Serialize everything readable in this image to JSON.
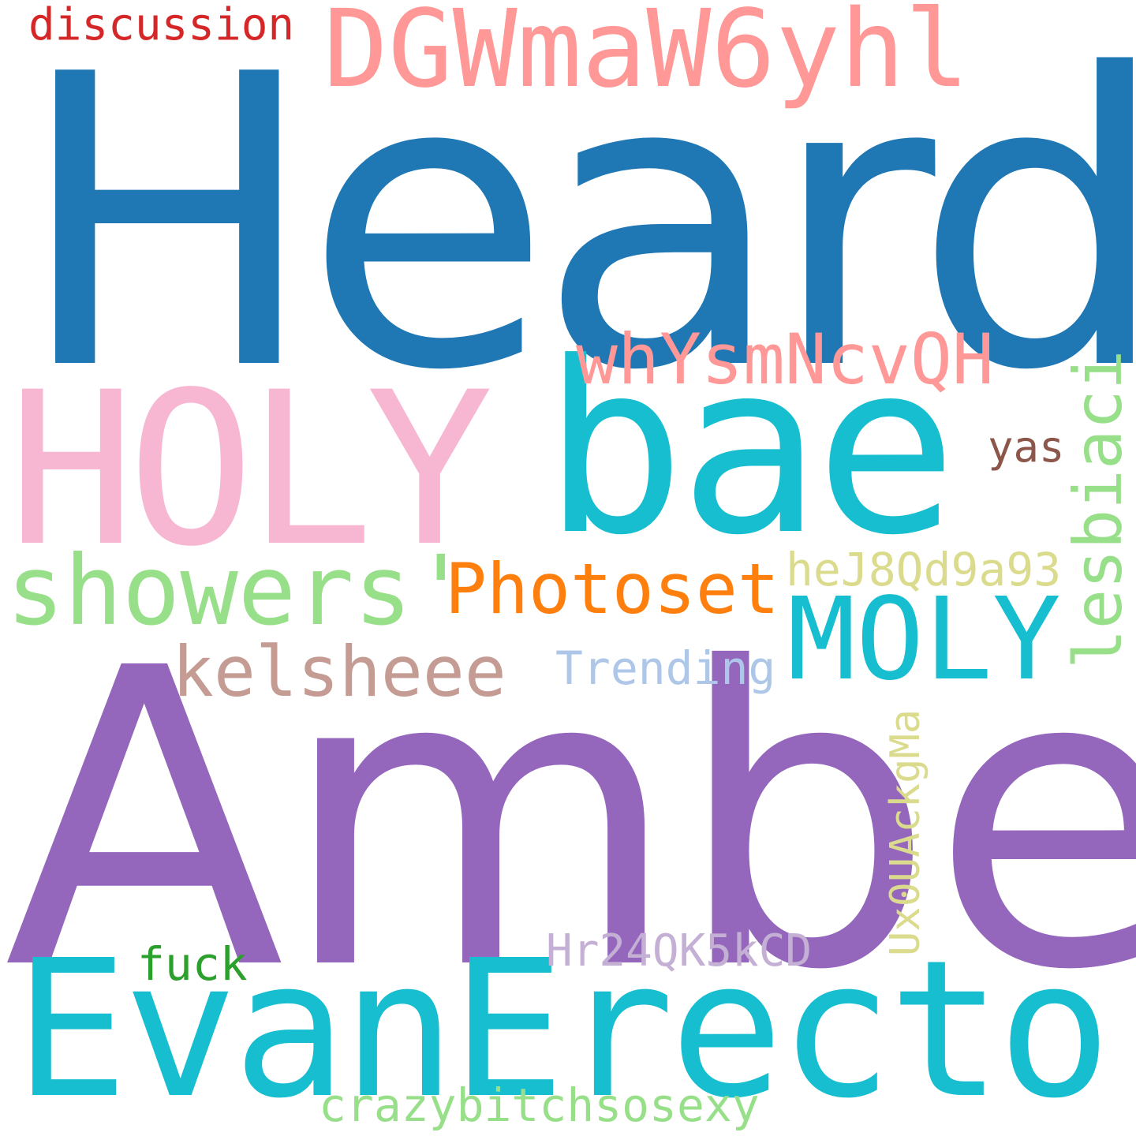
{
  "cloud": {
    "background": "#ffffff",
    "words": [
      {
        "text": "Heard",
        "color": "#1f77b4"
      },
      {
        "text": "Amber",
        "color": "#9467bd"
      },
      {
        "text": "HOLY",
        "color": "#f7b6d2"
      },
      {
        "text": "bae",
        "color": "#17becf"
      },
      {
        "text": "EvanErector",
        "color": "#17becf"
      },
      {
        "text": "DGWmaW6yhl",
        "color": "#ff9896"
      },
      {
        "text": "showers'",
        "color": "#98df8a"
      },
      {
        "text": "MOLY",
        "color": "#17becf"
      },
      {
        "text": "whYsmNcvQH",
        "color": "#ff9896"
      },
      {
        "text": "Photoset",
        "color": "#ff7f0e"
      },
      {
        "text": "kelsheee",
        "color": "#c49c94"
      },
      {
        "text": "lesbiaci",
        "color": "#98df8a"
      },
      {
        "text": "heJ8Qd9a93",
        "color": "#dbdb8d"
      },
      {
        "text": "Trending",
        "color": "#aec7e8"
      },
      {
        "text": "yas",
        "color": "#8c564b"
      },
      {
        "text": "Ux0UAckgMa",
        "color": "#dbdb8d"
      },
      {
        "text": "Hr24QK5kCD",
        "color": "#c5b0d5"
      },
      {
        "text": "fuck",
        "color": "#2ca02c"
      },
      {
        "text": "crazybitchsosexy",
        "color": "#98df8a"
      },
      {
        "text": "discussion",
        "color": "#d62728"
      }
    ]
  }
}
